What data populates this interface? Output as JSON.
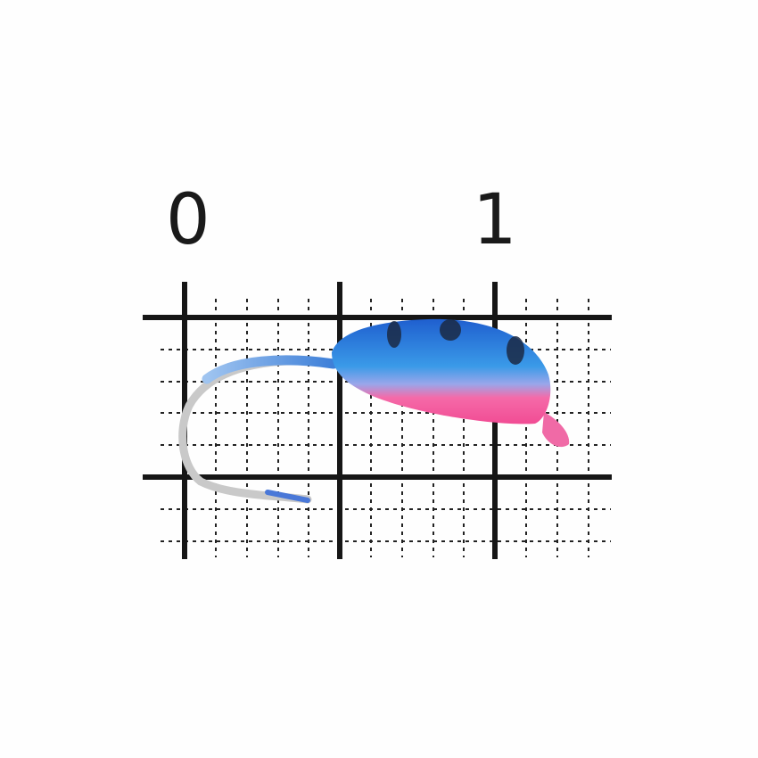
{
  "scale": {
    "labels": [
      "0",
      "1"
    ]
  },
  "colors": {
    "grid": "#1a1a1a",
    "body_blue": "#2f7fe0",
    "body_pink": "#f56aa8",
    "stripe": "#1b2a45",
    "hook": "#c8c8c8"
  },
  "icons": [
    "fishing-jig",
    "hook"
  ]
}
